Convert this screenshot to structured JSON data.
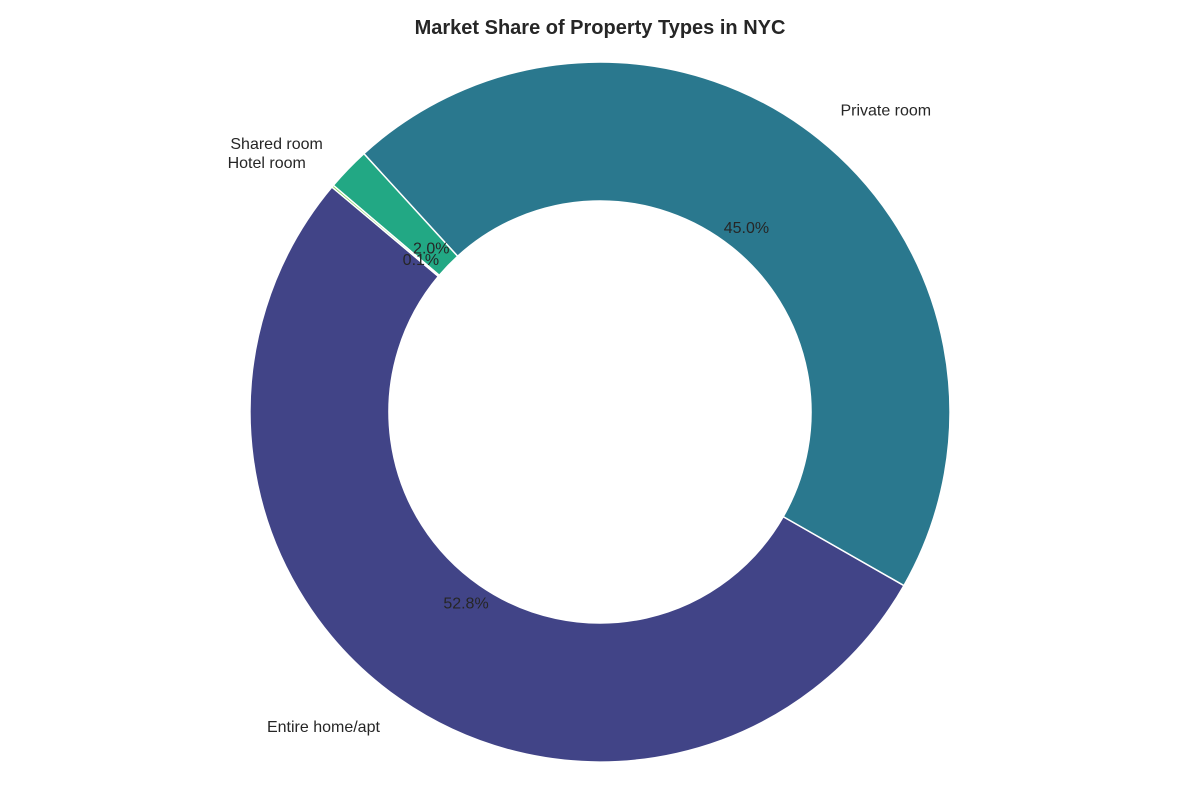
{
  "chart_data": {
    "type": "pie",
    "title": "Market Share of Property Types in NYC",
    "donut": true,
    "start_angle_deg": 140,
    "direction": "counterclockwise",
    "slices": [
      {
        "label": "Entire home/apt",
        "value": 52.8,
        "pct_label": "52.8%",
        "color": "#414487"
      },
      {
        "label": "Private room",
        "value": 45.0,
        "pct_label": "45.0%",
        "color": "#2a788e"
      },
      {
        "label": "Shared room",
        "value": 2.0,
        "pct_label": "2.0%",
        "color": "#22a884"
      },
      {
        "label": "Hotel room",
        "value": 0.1,
        "pct_label": "0.1%",
        "color": "#7ad151"
      }
    ]
  }
}
